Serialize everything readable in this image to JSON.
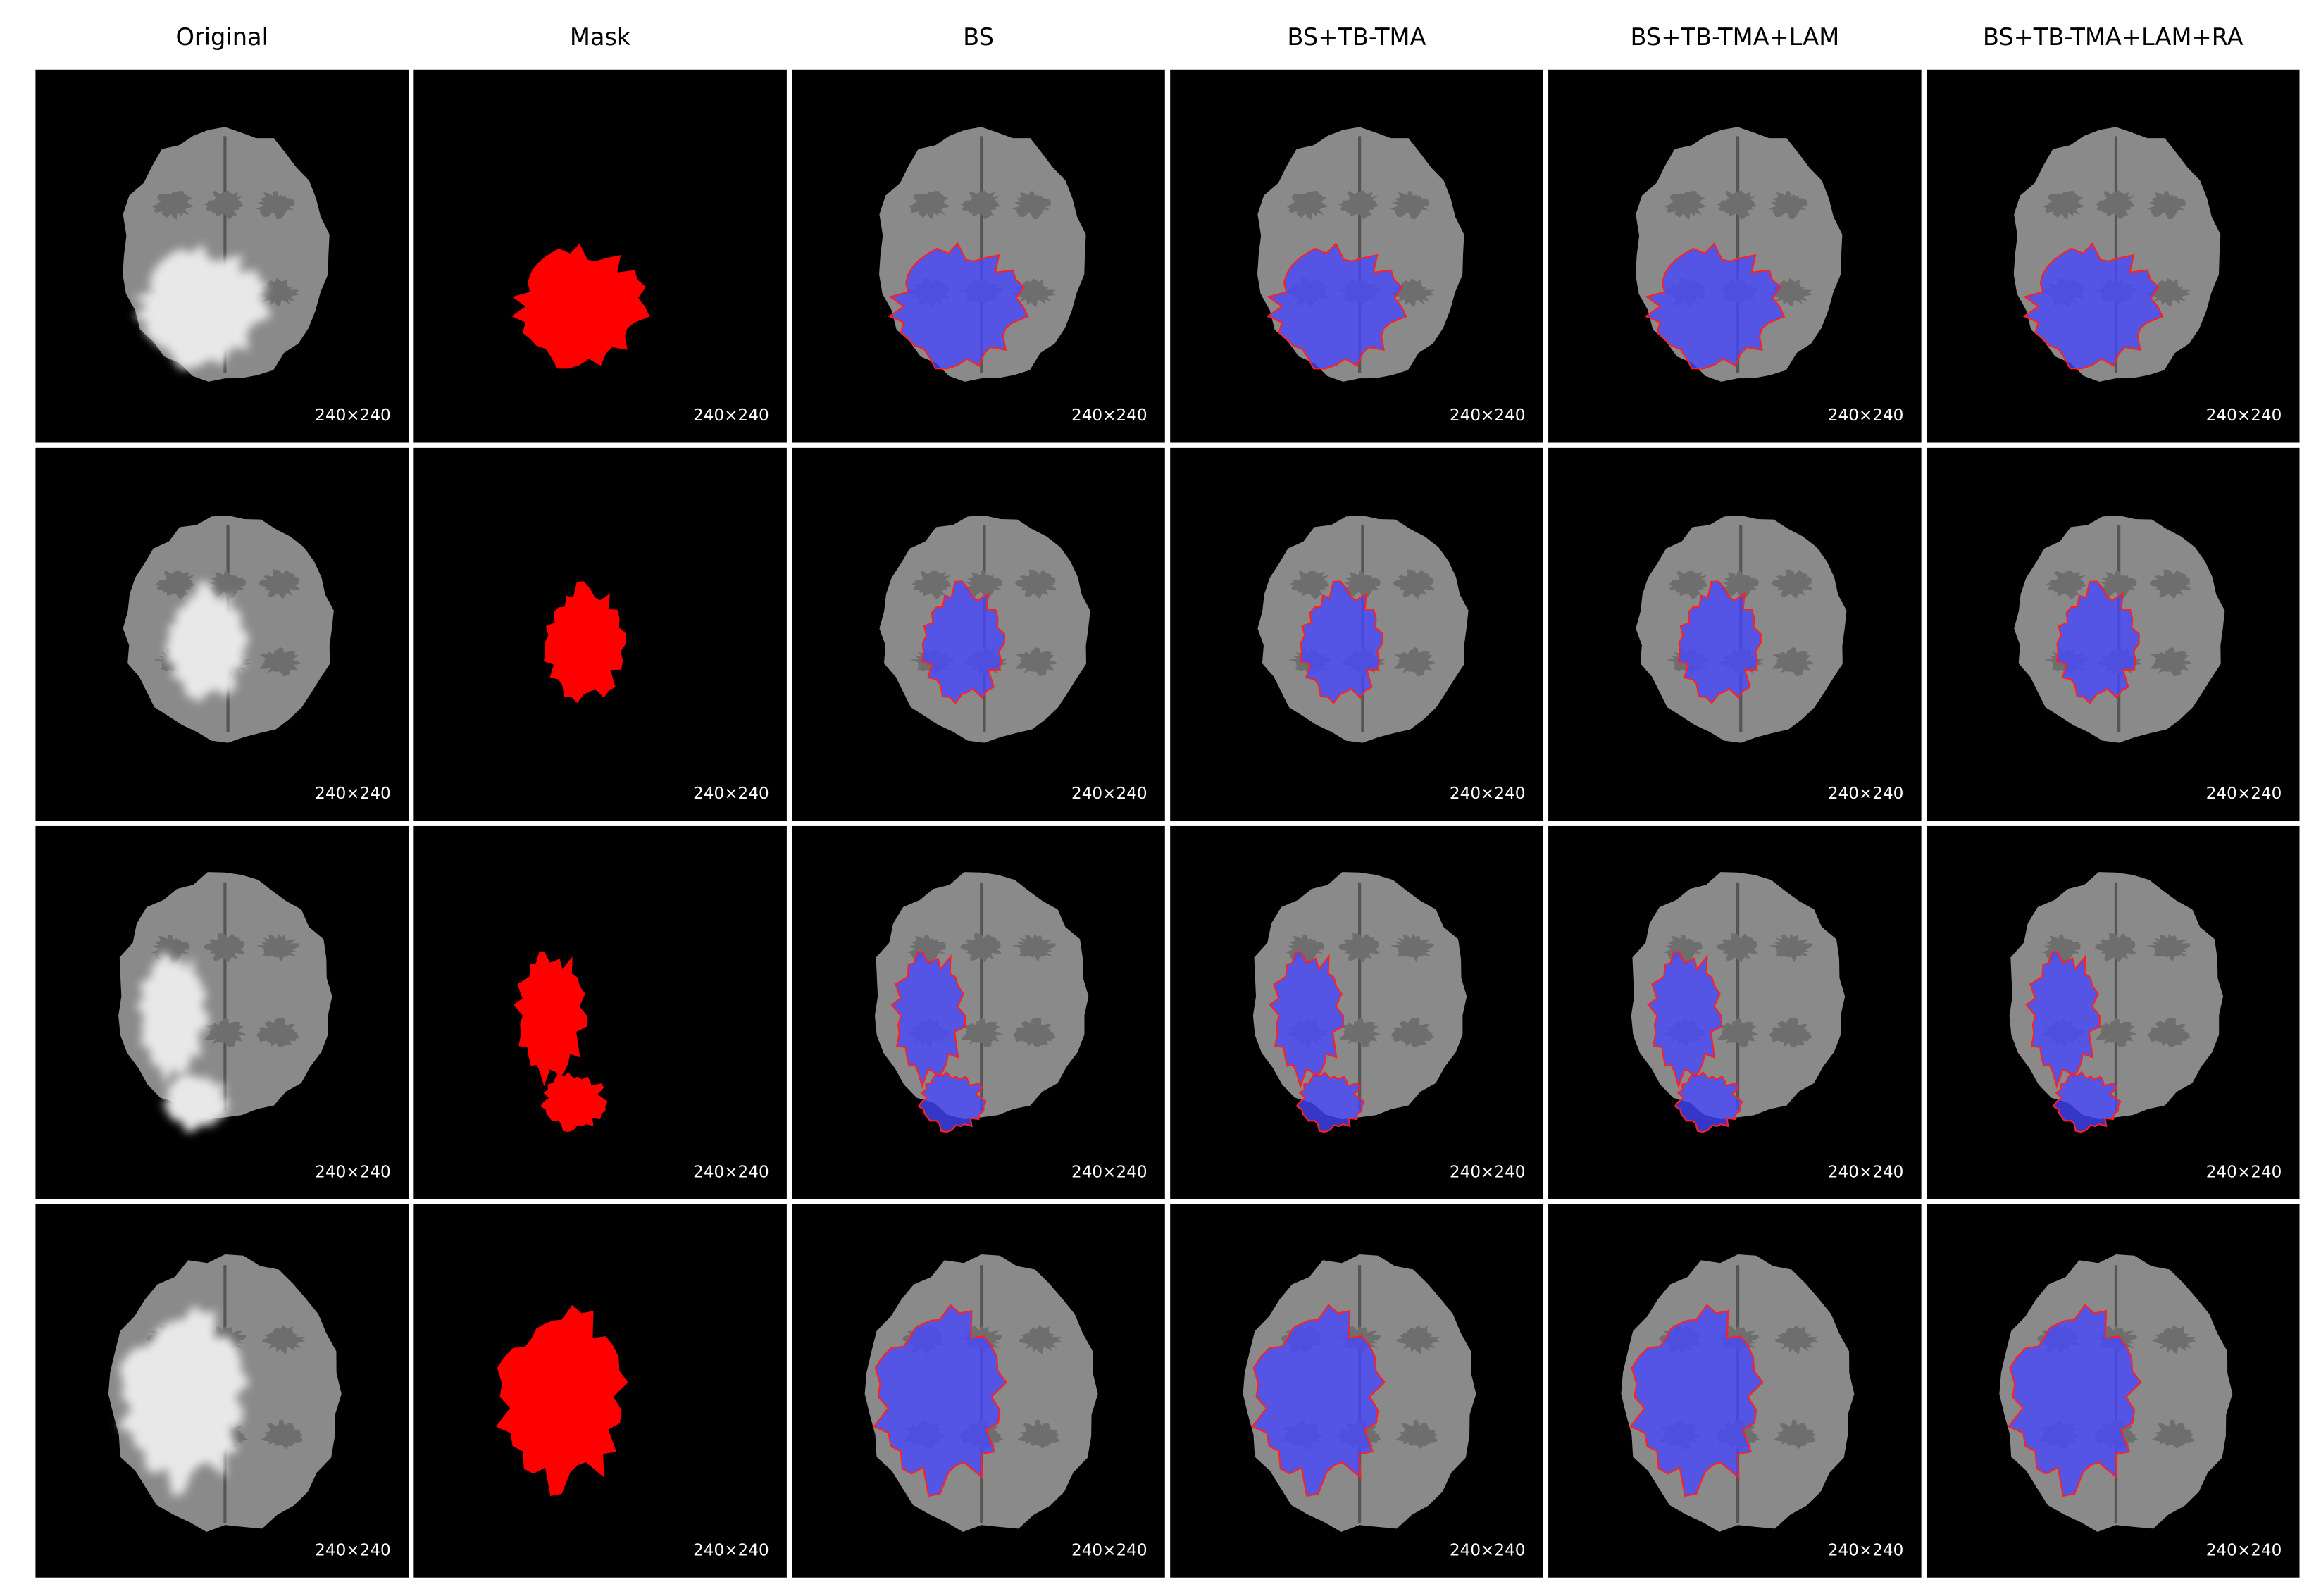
{
  "columns": [
    "Original",
    "Mask",
    "BS",
    "BS+TB-TMA",
    "BS+TB-TMA+LAM",
    "BS+TB-TMA+LAM+RA"
  ],
  "rows": [
    [
      "240×240",
      "240×240",
      "240×240",
      "240×240",
      "240×240",
      "240×240"
    ],
    [
      "240×240",
      "240×240",
      "240×240",
      "240×240",
      "240×240",
      "240×240"
    ],
    [
      "240×240",
      "240×240",
      "240×240",
      "240×240",
      "240×240",
      "240×240"
    ],
    [
      "240×240",
      "240×240",
      "240×240",
      "240×240",
      "240×240",
      "240×240"
    ]
  ]
}
